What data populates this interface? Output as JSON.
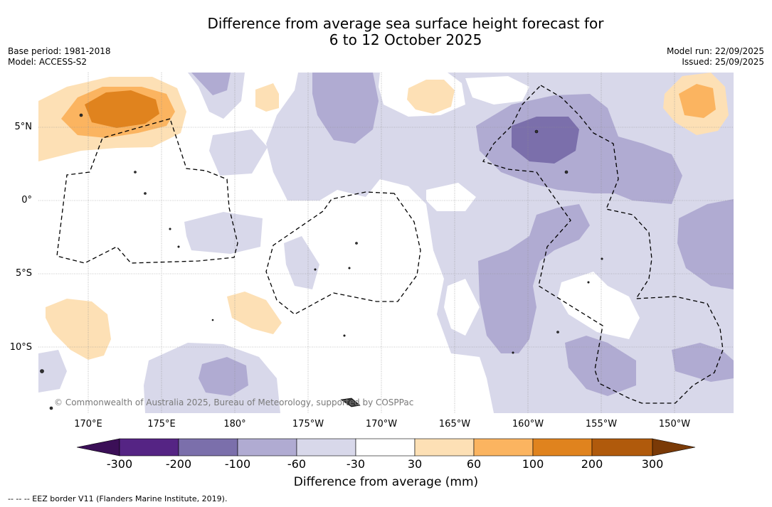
{
  "header": {
    "title_line1": "Difference from average sea surface height forecast for",
    "title_line2": "6 to 12 October 2025",
    "base_period": "Base period: 1981-2018",
    "model": "Model: ACCESS-S2",
    "model_run": "Model run: 22/09/2025",
    "issued": "Issued: 25/09/2025"
  },
  "map": {
    "copyright": "© Commonwealth of Australia 2025, Bureau of Meteorology, supported by COSPPac",
    "lat_labels": [
      "5°N",
      "0°",
      "5°S",
      "10°S"
    ],
    "lon_labels": [
      "170°E",
      "175°E",
      "180°",
      "175°W",
      "170°W",
      "165°W",
      "160°W",
      "155°W",
      "150°W"
    ]
  },
  "colorbar": {
    "title": "Difference from average (mm)",
    "ticks": [
      "-300",
      "-200",
      "-100",
      "-60",
      "-30",
      "30",
      "60",
      "100",
      "200",
      "300"
    ],
    "colors": {
      "below": "#3b0f57",
      "n300_200": "#552484",
      "n200_100": "#7b6fab",
      "n100_60": "#b0abd2",
      "n60_30": "#d8d8ea",
      "n30_30": "#ffffff",
      "p30_60": "#fde0b5",
      "p60_100": "#fbb460",
      "p100_200": "#e0831e",
      "p200_300": "#b05a0c",
      "above": "#7a3a07"
    }
  },
  "legend": {
    "eez": "--  --  -- EEZ border V11 (Flanders Marine Institute, 2019)."
  }
}
